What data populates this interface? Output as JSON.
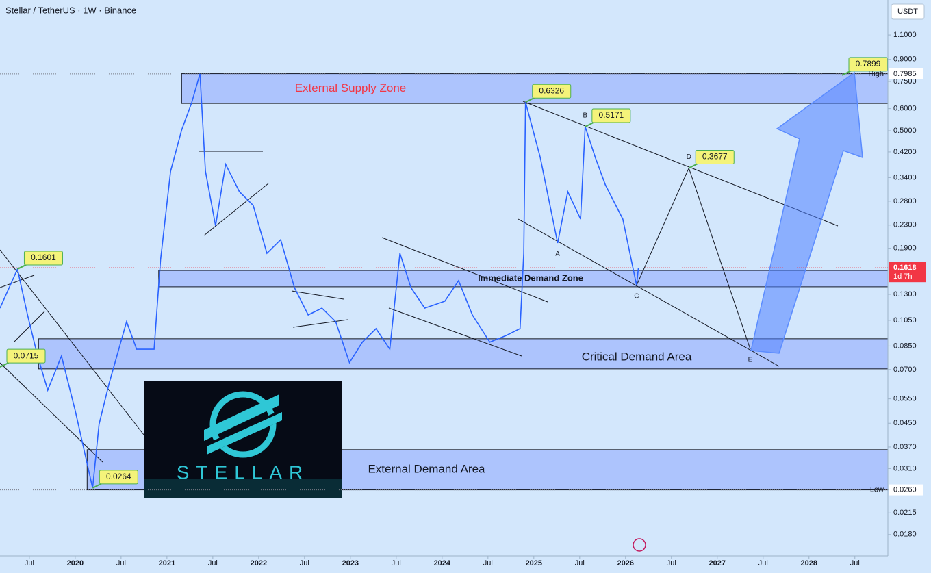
{
  "chart_data": {
    "type": "line",
    "title": "Stellar / TetherUS · 1W · Binance",
    "y_axis_label": "USDT",
    "log_scale": true,
    "grid": false,
    "background": "#d3e7fc",
    "xlim": [
      2019.18,
      2028.86
    ],
    "ylim": [
      0.0151,
      1.467
    ],
    "xticks": [
      {
        "value": 2019.5,
        "label": "Jul"
      },
      2020,
      {
        "value": 2020.5,
        "label": "Jul"
      },
      2021,
      {
        "value": 2021.5,
        "label": "Jul"
      },
      2022,
      {
        "value": 2022.5,
        "label": "Jul"
      },
      2023,
      {
        "value": 2023.5,
        "label": "Jul"
      },
      2024,
      {
        "value": 2024.5,
        "label": "Jul"
      },
      2025,
      {
        "value": 2025.5,
        "label": "Jul"
      },
      2026,
      {
        "value": 2026.5,
        "label": "Jul"
      },
      2027,
      {
        "value": 2027.5,
        "label": "Jul"
      },
      2028,
      {
        "value": 2028.5,
        "label": "Jul"
      }
    ],
    "yticks": [
      {
        "value": 1.1,
        "label": "1.1000"
      },
      {
        "value": 0.9,
        "label": "0.9000"
      },
      {
        "value": 0.75,
        "label": "0.7500"
      },
      {
        "value": 0.6,
        "label": "0.6000"
      },
      {
        "value": 0.5,
        "label": "0.5000"
      },
      {
        "value": 0.42,
        "label": "0.4200"
      },
      {
        "value": 0.34,
        "label": "0.3400"
      },
      {
        "value": 0.28,
        "label": "0.2800"
      },
      {
        "value": 0.23,
        "label": "0.2300"
      },
      {
        "value": 0.19,
        "label": "0.1900"
      },
      {
        "value": 0.13,
        "label": "0.1300"
      },
      {
        "value": 0.105,
        "label": "0.1050"
      },
      {
        "value": 0.085,
        "label": "0.0850"
      },
      {
        "value": 0.07,
        "label": "0.0700"
      },
      {
        "value": 0.055,
        "label": "0.0550"
      },
      {
        "value": 0.045,
        "label": "0.0450"
      },
      {
        "value": 0.037,
        "label": "0.0370"
      },
      {
        "value": 0.031,
        "label": "0.0310"
      },
      {
        "value": 0.026,
        "label": "0.0260"
      },
      {
        "value": 0.0215,
        "label": "0.0215"
      },
      {
        "value": 0.018,
        "label": "0.0180"
      }
    ],
    "series": [
      {
        "color": "#2962ff",
        "x": [
          2019.18,
          2019.37,
          2019.48,
          2019.59,
          2019.7,
          2019.85,
          2020.0,
          2020.19,
          2020.26,
          2020.37,
          2020.56,
          2020.67,
          2020.86,
          2020.93,
          2021.04,
          2021.16,
          2021.27,
          2021.36,
          2021.42,
          2021.53,
          2021.64,
          2021.79,
          2021.94,
          2022.09,
          2022.24,
          2022.39,
          2022.54,
          2022.69,
          2022.84,
          2022.99,
          2023.13,
          2023.28,
          2023.43,
          2023.54,
          2023.66,
          2023.81,
          2024.03,
          2024.18,
          2024.33,
          2024.52,
          2024.7,
          2024.85,
          2024.89,
          2024.91,
          2025.07,
          2025.26,
          2025.37,
          2025.51,
          2025.56,
          2025.67,
          2025.78,
          2025.97,
          2026.12,
          2026.14
        ],
        "values": [
          0.1161,
          0.1601,
          0.1098,
          0.0783,
          0.0591,
          0.0783,
          0.0499,
          0.0264,
          0.0446,
          0.0625,
          0.1038,
          0.0828,
          0.0828,
          0.1724,
          0.3585,
          0.5027,
          0.63,
          0.7985,
          0.3585,
          0.2285,
          0.3793,
          0.3027,
          0.2706,
          0.1823,
          0.204,
          0.1375,
          0.1098,
          0.1161,
          0.1038,
          0.0741,
          0.0877,
          0.0981,
          0.0828,
          0.1823,
          0.1375,
          0.1161,
          0.1229,
          0.1456,
          0.1098,
          0.0877,
          0.0927,
          0.0981,
          0.1823,
          0.6326,
          0.4013,
          0.1984,
          0.3027,
          0.2417,
          0.5171,
          0.4013,
          0.3204,
          0.2417,
          0.14,
          0.1618
        ]
      }
    ],
    "current_price": {
      "value": 0.1618,
      "countdown": "1d 7h"
    },
    "high": {
      "label": "High",
      "value": 0.7985
    },
    "low": {
      "label": "Low",
      "value": 0.026,
      "value_label": "0.0260"
    },
    "annotations": [
      {
        "x": 2019.37,
        "value": 0.1601
      },
      {
        "x": 2019.18,
        "value": 0.0715
      },
      {
        "x": 2020.19,
        "value": 0.0264
      },
      {
        "x": 2024.91,
        "value": 0.6326
      },
      {
        "x": 2025.56,
        "value": 0.5171
      },
      {
        "x": 2026.69,
        "value": 0.3677
      },
      {
        "x": 2028.36,
        "value": 0.7899
      }
    ],
    "zones": [
      {
        "label": "External Supply Zone",
        "ylim": [
          0.626,
          0.8
        ],
        "xstart": 2021.16,
        "color": "#f23645"
      },
      {
        "label": "Immediate Demand Zone",
        "ylim": [
          0.1384,
          0.1583
        ],
        "xstart": 2020.91,
        "color": "#131722"
      },
      {
        "label": "Critical Demand Area",
        "ylim": [
          0.0704,
          0.0902
        ],
        "xstart": 2019.6,
        "color": "#131722"
      },
      {
        "label": "External Demand Area",
        "ylim": [
          0.026,
          0.0362
        ],
        "xstart": 2020.13,
        "color": "#131722"
      }
    ],
    "pattern": {
      "points": [
        {
          "label": "A",
          "x": 2025.26,
          "value": 0.1984
        },
        {
          "label": "B",
          "x": 2025.56,
          "value": 0.5171
        },
        {
          "label": "C",
          "x": 2026.12,
          "value": 0.14
        },
        {
          "label": "D",
          "x": 2026.69,
          "value": 0.3677
        },
        {
          "label": "E",
          "x": 2027.36,
          "value": 0.0828
        }
      ]
    },
    "logo": {
      "text": "STELLAR"
    }
  }
}
